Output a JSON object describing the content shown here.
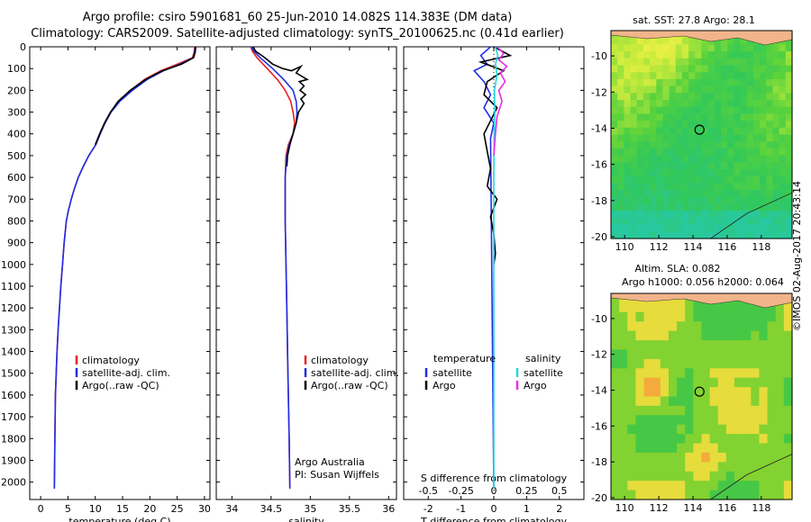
{
  "header": {
    "line1": "Argo profile: csiro 5901681_60 25-Jun-2010 14.082S 114.383E (DM data)",
    "line2": "Climatology: CARS2009. Satellite-adjusted climatology: synTS_20100625.nc (0.41d earlier)"
  },
  "stamp": "©IMOS 02-Aug-2017 20:43:14",
  "colors": {
    "climatology": "#e8231d",
    "satellite": "#1f2fe6",
    "argo": "#000000",
    "sal_satellite": "#22d8e0",
    "sal_argo": "#e62ee6",
    "land": "#f2b48a"
  },
  "chart_data": [
    {
      "type": "line",
      "name": "temperature-panel",
      "xlabel": "temperature (deg C)",
      "xlim": [
        -2,
        31
      ],
      "xticks": [
        0,
        5,
        10,
        15,
        20,
        25,
        30
      ],
      "ylim": [
        0,
        2080
      ],
      "yticks": [
        0,
        100,
        200,
        300,
        400,
        500,
        600,
        700,
        800,
        900,
        1000,
        1100,
        1200,
        1300,
        1400,
        1500,
        1600,
        1700,
        1800,
        1900,
        2000
      ],
      "legend": [
        "climatology",
        "satellite-adj. clim.",
        "Argo(..raw -QC)"
      ],
      "series": [
        {
          "name": "climatology",
          "color": "#e8231d",
          "x": [
            28.2,
            28.1,
            27.8,
            25,
            22,
            19,
            16.5,
            14.3,
            12.8,
            11.8,
            10.9,
            10.1,
            8.8,
            7.8,
            6.9,
            6.2,
            5.6,
            5.1,
            4.7,
            4.3,
            4,
            3.7,
            3.45,
            3.2,
            3,
            2.85,
            2.7,
            2.6,
            2.5
          ],
          "y": [
            0,
            25,
            50,
            80,
            110,
            150,
            200,
            250,
            300,
            350,
            400,
            450,
            500,
            550,
            600,
            650,
            700,
            750,
            800,
            900,
            1000,
            1100,
            1200,
            1300,
            1400,
            1500,
            1600,
            1800,
            2030
          ]
        },
        {
          "name": "satellite-adj. clim.",
          "color": "#1f2fe6",
          "x": [
            28.3,
            28.2,
            27.9,
            25.5,
            22.5,
            19.5,
            16.8,
            14.5,
            12.9,
            11.8,
            10.9,
            10.1,
            8.8,
            7.8,
            6.9,
            6.2,
            5.6,
            5.1,
            4.7,
            4.3,
            4,
            3.7,
            3.45,
            3.2,
            3,
            2.85,
            2.7,
            2.6,
            2.5
          ],
          "y": [
            0,
            25,
            50,
            80,
            110,
            150,
            200,
            250,
            300,
            350,
            400,
            450,
            500,
            550,
            600,
            650,
            700,
            750,
            800,
            900,
            1000,
            1100,
            1200,
            1300,
            1400,
            1500,
            1600,
            1800,
            2030
          ]
        },
        {
          "name": "Argo(..raw -QC)",
          "color": "#000000",
          "x": [
            28.4,
            28.3,
            28,
            25.8,
            22.3,
            19.2,
            16.4,
            14.2,
            12.8,
            11.7,
            10.8,
            10
          ],
          "y": [
            0,
            25,
            50,
            80,
            110,
            150,
            200,
            250,
            300,
            350,
            400,
            450
          ]
        }
      ]
    },
    {
      "type": "line",
      "name": "salinity-panel",
      "xlabel": "salinity",
      "xlim": [
        33.8,
        36.1
      ],
      "xticks": [
        34,
        34.5,
        35,
        35.5,
        36
      ],
      "ylim": [
        0,
        2080
      ],
      "legend": [
        "climatology",
        "satellite-adj. clim.",
        "Argo(..raw -QC)"
      ],
      "annotation": [
        "Argo Australia",
        "PI: Susan Wijffels"
      ],
      "series": [
        {
          "name": "climatology",
          "color": "#e8231d",
          "x": [
            34.24,
            34.26,
            34.32,
            34.45,
            34.58,
            34.68,
            34.75,
            34.78,
            34.8,
            34.78,
            34.72,
            34.69,
            34.68,
            34.68,
            34.69,
            34.7,
            34.71,
            34.72,
            34.73,
            34.74
          ],
          "y": [
            0,
            20,
            50,
            100,
            150,
            200,
            250,
            300,
            350,
            400,
            450,
            500,
            600,
            800,
            1000,
            1200,
            1400,
            1600,
            1800,
            2030
          ]
        },
        {
          "name": "satellite-adj. clim.",
          "color": "#1f2fe6",
          "x": [
            34.25,
            34.28,
            34.36,
            34.52,
            34.66,
            34.78,
            34.82,
            34.83,
            34.82,
            34.78,
            34.73,
            34.7,
            34.68,
            34.68,
            34.69,
            34.7,
            34.71,
            34.72,
            34.73,
            34.74
          ],
          "y": [
            0,
            20,
            50,
            100,
            150,
            200,
            250,
            300,
            350,
            400,
            450,
            500,
            600,
            800,
            1000,
            1200,
            1400,
            1600,
            1800,
            2030
          ]
        },
        {
          "name": "Argo(..raw -QC)",
          "color": "#000000",
          "x": [
            34.27,
            34.3,
            34.42,
            34.52,
            34.65,
            34.76,
            34.88,
            34.82,
            34.96,
            34.86,
            34.92,
            34.87,
            34.94,
            34.88,
            34.92,
            34.85,
            34.82,
            34.78,
            34.74,
            34.71,
            34.7
          ],
          "y": [
            0,
            20,
            50,
            80,
            100,
            110,
            90,
            120,
            150,
            160,
            180,
            200,
            220,
            240,
            260,
            300,
            350,
            400,
            450,
            500,
            550
          ]
        }
      ]
    },
    {
      "type": "line",
      "name": "difference-panel",
      "xlabel": "T difference from climatology",
      "xlabel_top": "S difference from climatology",
      "xlim": [
        -2.75,
        2.75
      ],
      "xticks": [
        -2,
        -1,
        0,
        1,
        2
      ],
      "sticks": [
        -0.5,
        -0.25,
        0,
        0.25,
        0.5
      ],
      "sticks_scale": 4,
      "ylim": [
        0,
        2080
      ],
      "legend_headers": [
        "temperature",
        "salinity"
      ],
      "legend": [
        "satellite",
        "Argo",
        "satellite",
        "Argo"
      ],
      "series": [
        {
          "name": "temperature satellite",
          "color": "#1f2fe6",
          "x": [
            -0.1,
            -0.4,
            -0.2,
            -0.6,
            -0.3,
            -0.1,
            -0.3,
            0,
            -0.1,
            0
          ],
          "y": [
            0,
            40,
            80,
            110,
            160,
            220,
            280,
            350,
            420,
            2030
          ]
        },
        {
          "name": "temperature Argo",
          "color": "#000000",
          "x": [
            0,
            0.5,
            -0.4,
            0.3,
            -0.2,
            -0.3,
            0.1,
            -0.1,
            -0.3,
            -0.2,
            -0.1,
            -0.2,
            0.1,
            -0.1,
            0,
            0.05,
            0
          ],
          "y": [
            0,
            40,
            70,
            110,
            160,
            220,
            280,
            340,
            400,
            480,
            560,
            640,
            700,
            780,
            860,
            950,
            1000
          ]
        },
        {
          "name": "salinity satellite",
          "color": "#22d8e0",
          "x": [
            0.05,
            0.12,
            0.05,
            0.1,
            0.02,
            0.03,
            0.01,
            0,
            0,
            0
          ],
          "y": [
            0,
            40,
            80,
            130,
            200,
            300,
            400,
            600,
            1000,
            2030
          ]
        },
        {
          "name": "salinity Argo",
          "color": "#e62ee6",
          "x": [
            0.1,
            0.3,
            0.15,
            0.4,
            0.2,
            0.35,
            0.15,
            0.25,
            0.1,
            0.05,
            0
          ],
          "y": [
            0,
            30,
            60,
            90,
            120,
            160,
            200,
            250,
            320,
            400,
            500
          ]
        }
      ]
    },
    {
      "type": "heatmap",
      "name": "sst-map",
      "title": "sat. SST: 27.8 Argo: 28.1",
      "xticks": [
        110,
        112,
        114,
        116,
        118
      ],
      "yticks": [
        -10,
        -12,
        -14,
        -16,
        -18,
        -20
      ],
      "xlim": [
        109.2,
        119.8
      ],
      "ylim": [
        -20.1,
        -8.6
      ],
      "float_position": [
        114.383,
        -14.082
      ]
    },
    {
      "type": "heatmap",
      "name": "sla-map",
      "title": [
        "Altim. SLA: 0.082",
        "Argo h1000: 0.056 h2000: 0.064"
      ],
      "xticks": [
        110,
        112,
        114,
        116,
        118
      ],
      "yticks": [
        -10,
        -12,
        -14,
        -16,
        -18,
        -20
      ],
      "xlim": [
        109.2,
        119.8
      ],
      "ylim": [
        -20.1,
        -8.6
      ],
      "float_position": [
        114.383,
        -14.082
      ]
    }
  ]
}
